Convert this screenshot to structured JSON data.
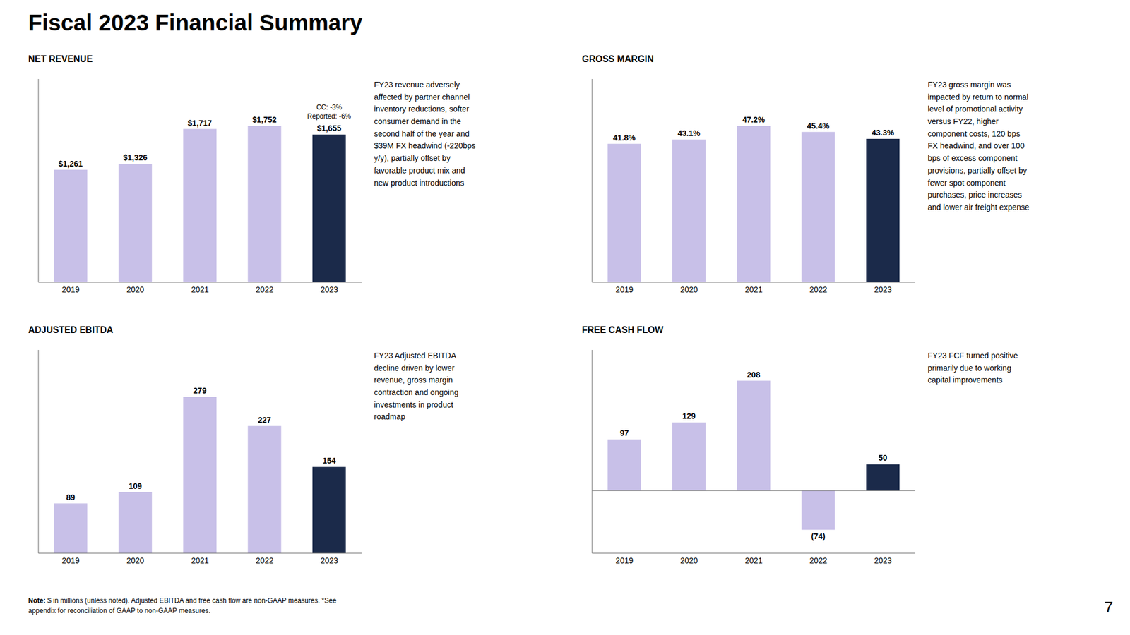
{
  "title": "Fiscal 2023 Financial Summary",
  "annotations": [
    {
      "text": "Note:"
    },
    {
      "text": "$ in millions (unless noted). Adjusted EBITDA and free cash flow are non-GAAP measures.  *See"
    },
    {
      "text": "appendix for reconciliation of GAAP to non-GAAP measures."
    },
    {
      "text": "7"
    }
  ],
  "chart_data": [
    {
      "type": "bar",
      "title": "NET REVENUE",
      "categories": [
        "2019",
        "2020",
        "2021",
        "2022",
        "2023"
      ],
      "values": [
        1261,
        1326,
        1717,
        1752,
        1655
      ],
      "value_labels": [
        "$1,261",
        "$1,326",
        "$1,717",
        "$1,752",
        "$1,655"
      ],
      "data_labels": true,
      "colors": [
        "#C8C0E8",
        "#C8C0E8",
        "#C8C0E8",
        "#C8C0E8",
        "#1B2A4A"
      ],
      "ylim": [
        0,
        2277.6
      ],
      "tick_labels": "x",
      "grid": false,
      "annotations": [
        {
          "text": "CC: -3%",
          "x": "2023"
        },
        {
          "text": "Reported: -6%",
          "x": "2023"
        },
        {
          "text": "FY23 revenue adversely\naffected by partner channel\ninventory reductions, softer\nconsumer demand in the\nsecond half of the year and\n$39M FX headwind (-220bps\ny/y), partially offset by\nfavorable product mix and\nnew product introductions"
        }
      ]
    },
    {
      "type": "bar",
      "title": "GROSS MARGIN",
      "categories": [
        "2019",
        "2020",
        "2021",
        "2022",
        "2023"
      ],
      "values": [
        41.8,
        43.1,
        47.2,
        45.4,
        43.3
      ],
      "value_labels": [
        "41.8%",
        "43.1%",
        "47.2%",
        "45.4%",
        "43.3%"
      ],
      "data_labels": true,
      "colors": [
        "#C8C0E8",
        "#C8C0E8",
        "#C8C0E8",
        "#C8C0E8",
        "#1B2A4A"
      ],
      "ylim": [
        0,
        61.36
      ],
      "tick_labels": "x",
      "grid": false,
      "annotations": [
        {
          "text": "FY23 gross margin was\nimpacted by return to normal\nlevel of promotional activity\nversus FY22, higher\ncomponent costs, 120 bps\nFX headwind, and over 100\nbps of excess component\nprovisions, partially offset by\nfewer spot component\npurchases, price increases\nand lower air freight expense"
        }
      ]
    },
    {
      "type": "bar",
      "title": "ADJUSTED EBITDA",
      "categories": [
        "2019",
        "2020",
        "2021",
        "2022",
        "2023"
      ],
      "values": [
        89,
        109,
        279,
        227,
        154
      ],
      "data_labels": true,
      "colors": [
        "#C8C0E8",
        "#C8C0E8",
        "#C8C0E8",
        "#C8C0E8",
        "#1B2A4A"
      ],
      "ylim": [
        0,
        362.7
      ],
      "tick_labels": "x",
      "grid": false,
      "annotations": [
        {
          "text": "FY23 Adjusted EBITDA\ndecline driven by lower\nrevenue, gross margin\ncontraction and ongoing\ninvestments in product\nroadmap"
        }
      ]
    },
    {
      "type": "bar",
      "title": "FREE CASH FLOW",
      "categories": [
        "2019",
        "2020",
        "2021",
        "2022",
        "2023"
      ],
      "values": [
        97,
        129,
        208,
        -74,
        50
      ],
      "value_labels": [
        "97",
        "129",
        "208",
        "(74)",
        "50"
      ],
      "data_labels": true,
      "colors": [
        "#C8C0E8",
        "#C8C0E8",
        "#C8C0E8",
        "#C8C0E8",
        "#1B2A4A"
      ],
      "ylim": [
        -118.4,
        266.24
      ],
      "tick_labels": "x",
      "grid": false,
      "annotations": [
        {
          "text": "FY23 FCF turned positive\nprimarily due to working\ncapital improvements"
        }
      ]
    }
  ]
}
